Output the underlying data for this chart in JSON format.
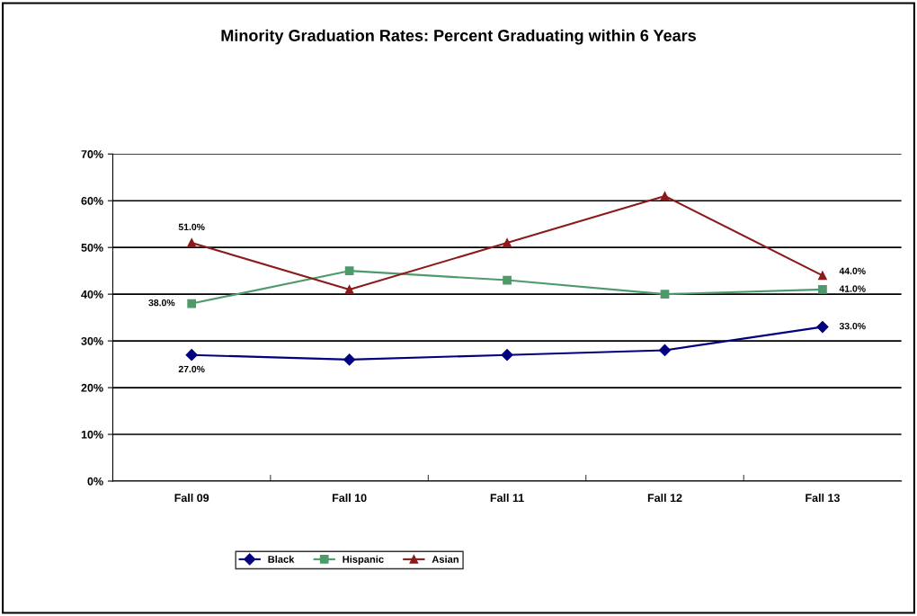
{
  "chart_data": {
    "type": "line",
    "title": "Minority Graduation Rates: Percent Graduating within 6 Years",
    "categories": [
      "Fall 09",
      "Fall 10",
      "Fall 11",
      "Fall 12",
      "Fall 13"
    ],
    "series": [
      {
        "name": "Black",
        "color": "#000080",
        "marker": "diamond",
        "values": [
          27,
          26,
          27,
          28,
          33
        ],
        "value_labels": [
          "27.0%",
          null,
          null,
          null,
          "33.0%"
        ]
      },
      {
        "name": "Hispanic",
        "color": "#4e9a6a",
        "marker": "square",
        "values": [
          38,
          45,
          43,
          40,
          41
        ],
        "value_labels": [
          "38.0%",
          null,
          null,
          null,
          "41.0%"
        ]
      },
      {
        "name": "Asian",
        "color": "#8b1a1a",
        "marker": "triangle",
        "values": [
          51,
          41,
          51,
          61,
          44
        ],
        "value_labels": [
          "51.0%",
          null,
          null,
          null,
          "44.0%"
        ]
      }
    ],
    "ylim": [
      0,
      70
    ],
    "yticks": [
      {
        "value": 0,
        "label": "0%"
      },
      {
        "value": 10,
        "label": "10%"
      },
      {
        "value": 20,
        "label": "20%"
      },
      {
        "value": 30,
        "label": "30%"
      },
      {
        "value": 40,
        "label": "40%"
      },
      {
        "value": 50,
        "label": "50%"
      },
      {
        "value": 60,
        "label": "60%"
      },
      {
        "value": 70,
        "label": "70%"
      }
    ],
    "grid": "y",
    "legend": "bottom",
    "line_style": "solid"
  }
}
